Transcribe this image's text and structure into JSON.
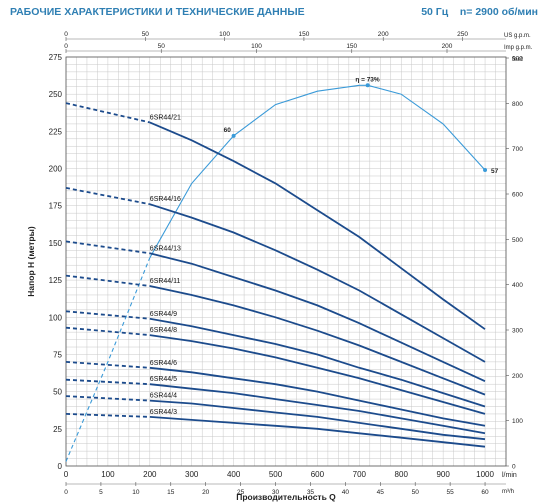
{
  "header": {
    "title": "РАБОЧИЕ ХАРАКТЕРИСТИКИ И ТЕХНИЧЕСКИЕ ДАННЫЕ",
    "freq": "50 Гц",
    "speed": "n= 2900 об/мин"
  },
  "colors": {
    "curve": "#1c4b8c",
    "efficiency": "#3a9ad8",
    "grid": "#c8c8c8",
    "header": "#2f7fb3"
  },
  "chart_data": {
    "type": "line",
    "xlabel": "Производительность Q",
    "ylabel": "Напор H (метры)",
    "xlim": [
      0,
      1000
    ],
    "ylim": [
      0,
      275
    ],
    "x_unit": "l/min",
    "x_ticks": [
      0,
      100,
      200,
      300,
      400,
      500,
      600,
      700,
      800,
      900,
      1000
    ],
    "y_ticks": [
      0,
      25,
      50,
      75,
      100,
      125,
      150,
      175,
      200,
      225,
      250,
      275
    ],
    "secondary_axes": {
      "top_us": {
        "unit": "US g.p.m.",
        "ticks": [
          0,
          50,
          100,
          150,
          200,
          250
        ],
        "factor": 3.785
      },
      "top_imp": {
        "unit": "Imp g.p.m.",
        "ticks": [
          0,
          50,
          100,
          150,
          200
        ],
        "factor": 4.546
      },
      "bottom_m3h": {
        "unit": "m³/h",
        "ticks": [
          0,
          5,
          10,
          15,
          20,
          25,
          30,
          35,
          40,
          45,
          50,
          55,
          60
        ],
        "factor": 16.6667
      },
      "right_feet": {
        "unit": "feet",
        "ticks": [
          0,
          100,
          200,
          300,
          400,
          500,
          600,
          700,
          800,
          900
        ],
        "factor": 0.3048
      }
    },
    "series": [
      {
        "name": "6SR44/21",
        "dash_end": 200,
        "x": [
          0,
          200,
          300,
          400,
          500,
          600,
          700,
          800,
          900,
          1000
        ],
        "y": [
          244,
          231,
          219,
          205,
          190,
          172,
          154,
          133,
          112,
          92
        ]
      },
      {
        "name": "6SR44/16",
        "dash_end": 200,
        "x": [
          0,
          200,
          300,
          400,
          500,
          600,
          700,
          800,
          900,
          1000
        ],
        "y": [
          187,
          176,
          167,
          157,
          145,
          132,
          118,
          102,
          86,
          70
        ]
      },
      {
        "name": "6SR44/13",
        "dash_end": 200,
        "x": [
          0,
          200,
          300,
          400,
          500,
          600,
          700,
          800,
          900,
          1000
        ],
        "y": [
          151,
          143,
          136,
          127,
          118,
          108,
          96,
          83,
          70,
          57
        ]
      },
      {
        "name": "6SR44/11",
        "dash_end": 200,
        "x": [
          0,
          200,
          300,
          400,
          500,
          600,
          700,
          800,
          900,
          1000
        ],
        "y": [
          128,
          121,
          115,
          108,
          100,
          91,
          81,
          70,
          59,
          48
        ]
      },
      {
        "name": "6SR44/9",
        "dash_end": 200,
        "x": [
          0,
          200,
          300,
          400,
          500,
          600,
          700,
          800,
          900,
          1000
        ],
        "y": [
          104,
          99,
          94,
          88,
          82,
          75,
          66,
          58,
          49,
          40
        ]
      },
      {
        "name": "6SR44/8",
        "dash_end": 200,
        "x": [
          0,
          200,
          300,
          400,
          500,
          600,
          700,
          800,
          900,
          1000
        ],
        "y": [
          93,
          88,
          84,
          79,
          73,
          66,
          59,
          51,
          43,
          35
        ]
      },
      {
        "name": "6SR44/6",
        "dash_end": 200,
        "x": [
          0,
          200,
          300,
          400,
          500,
          600,
          700,
          800,
          900,
          1000
        ],
        "y": [
          70,
          66,
          63,
          59,
          55,
          50,
          44,
          38,
          32,
          27
        ]
      },
      {
        "name": "6SR44/5",
        "dash_end": 200,
        "x": [
          0,
          200,
          300,
          400,
          500,
          600,
          700,
          800,
          900,
          1000
        ],
        "y": [
          58,
          55,
          52,
          49,
          45,
          41,
          37,
          32,
          27,
          22
        ]
      },
      {
        "name": "6SR44/4",
        "dash_end": 200,
        "x": [
          0,
          200,
          300,
          400,
          500,
          600,
          700,
          800,
          900,
          1000
        ],
        "y": [
          47,
          44,
          42,
          39,
          36,
          33,
          29,
          25,
          21,
          18
        ]
      },
      {
        "name": "6SR44/3",
        "dash_end": 200,
        "x": [
          0,
          200,
          300,
          400,
          500,
          600,
          700,
          800,
          900,
          1000
        ],
        "y": [
          35,
          33,
          31,
          29,
          27,
          25,
          22,
          19,
          16,
          13
        ]
      }
    ],
    "efficiency": {
      "dash_end": 200,
      "x": [
        0,
        100,
        200,
        300,
        400,
        500,
        600,
        700,
        720,
        800,
        900,
        1000
      ],
      "y": [
        3,
        70,
        140,
        190,
        222,
        243,
        252,
        256,
        256,
        250,
        230,
        199
      ],
      "labels": [
        {
          "x": 400,
          "y": 222,
          "text": "60"
        },
        {
          "x": 720,
          "y": 256,
          "text": "η = 73%"
        },
        {
          "x": 1000,
          "y": 199,
          "text": "57"
        }
      ]
    }
  }
}
